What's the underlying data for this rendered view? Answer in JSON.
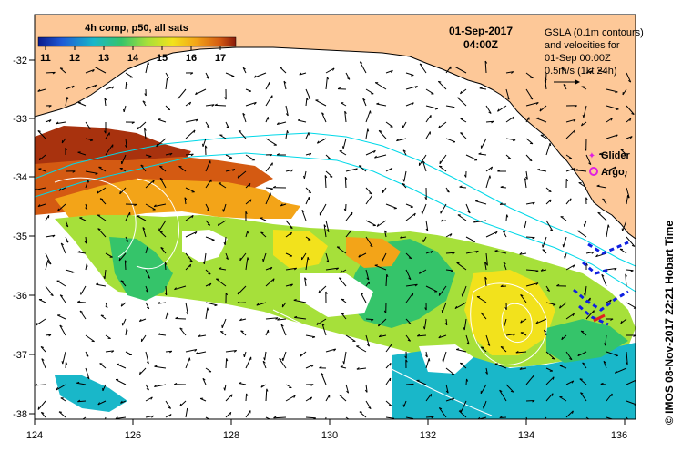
{
  "colorbar": {
    "title": "4h comp, p50, all sats",
    "ticks": [
      "11",
      "12",
      "13",
      "14",
      "15",
      "16",
      "17"
    ],
    "colors": [
      "#0a1a8c",
      "#1f5ad6",
      "#19b7c9",
      "#35c46a",
      "#a6e03a",
      "#f2e21c",
      "#f3a418",
      "#d45a12",
      "#8a1a0a"
    ]
  },
  "header": {
    "date": "01-Sep-2017",
    "time": "04:00Z"
  },
  "info": {
    "line1": "GSLA (0.1m contours)",
    "line2": "and velocities for",
    "line3": "01-Sep 00:00Z",
    "line4": "0.5m/s (1kt 24h)"
  },
  "legend": {
    "glider": "Glider",
    "argo": "Argo",
    "glider_color": "#e020e0",
    "argo_color": "#e020e0"
  },
  "axes": {
    "x_ticks": [
      "124",
      "126",
      "128",
      "130",
      "132",
      "134",
      "136"
    ],
    "y_ticks": [
      "-32",
      "-33",
      "-34",
      "-35",
      "-36",
      "-37",
      "-38"
    ]
  },
  "credit": "© IMOS 08-Nov-2017 22:21 Hobart Time",
  "colors": {
    "land": "#fdc898",
    "ocean_no_data": "#ffffff",
    "contour": "#00d8e8"
  }
}
